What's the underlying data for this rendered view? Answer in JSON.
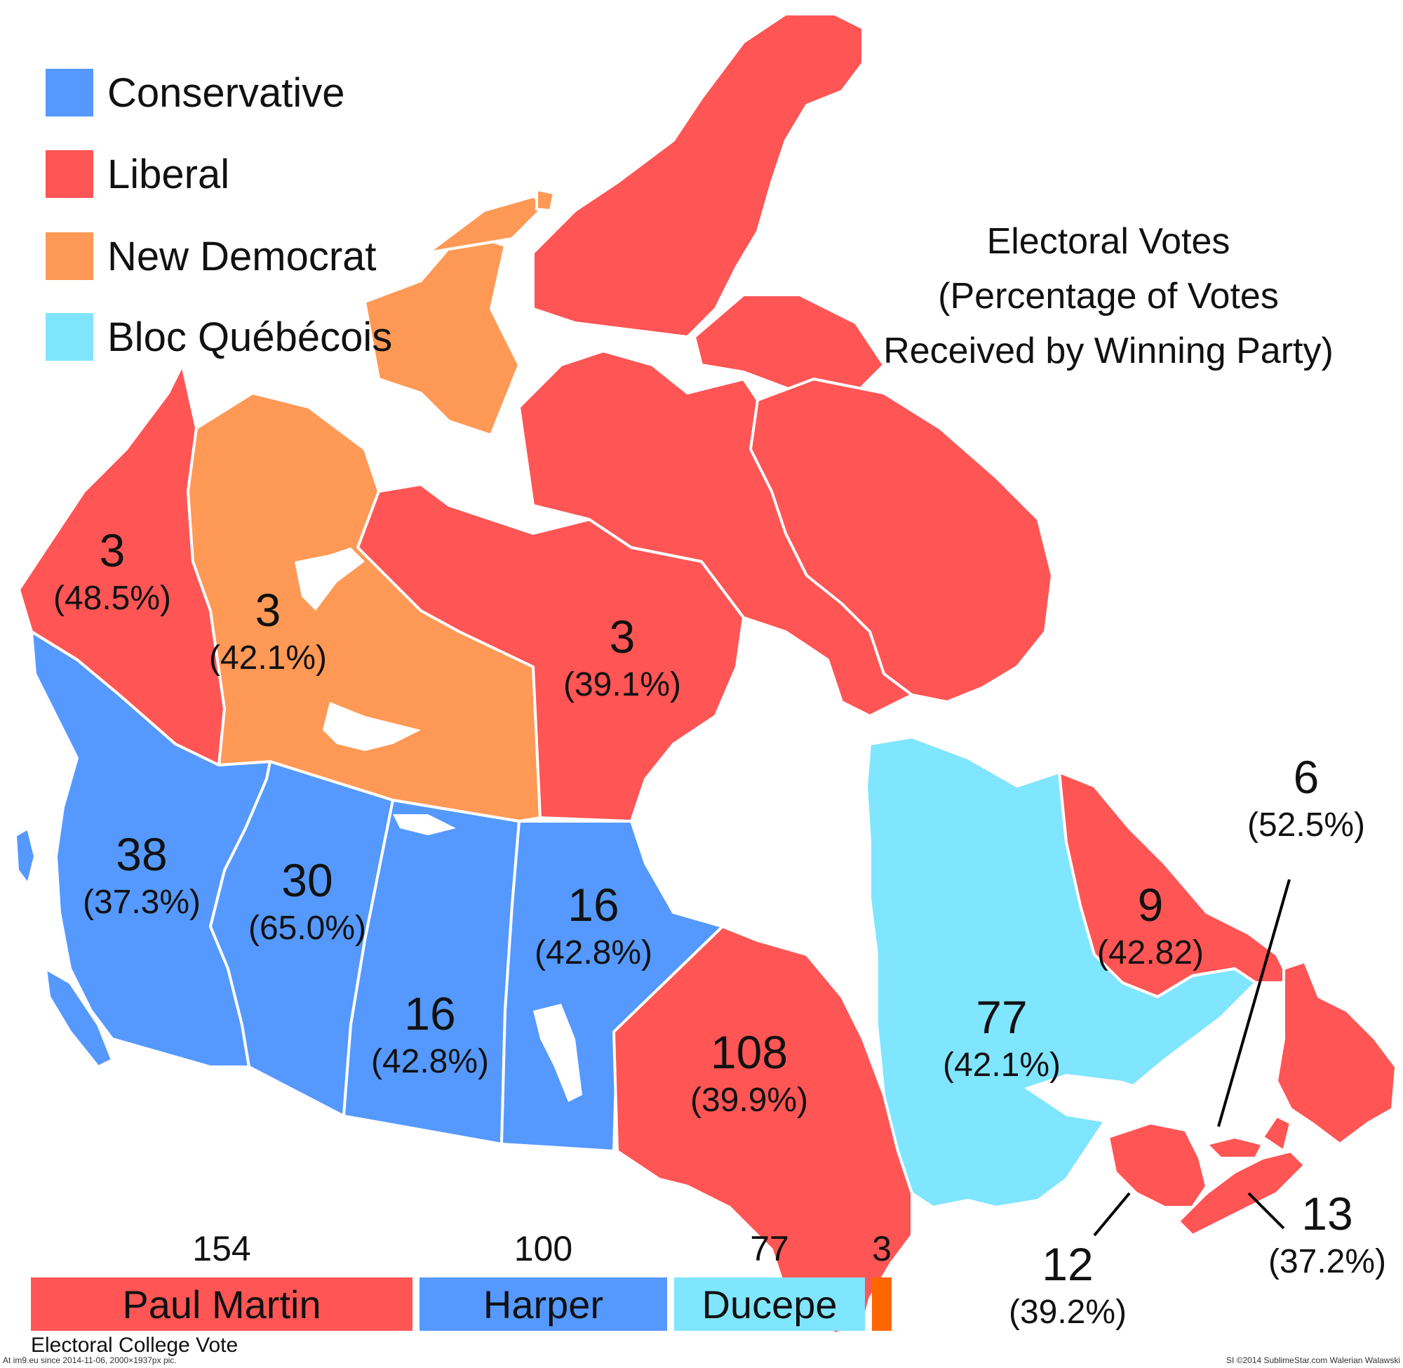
{
  "colors": {
    "conservative": "#5599ff",
    "liberal": "#ff5555",
    "new_democrat": "#ff9955",
    "bloc_quebecois": "#80e5ff",
    "other": "#ff6600",
    "water": "#ffffff",
    "border": "#ffffff"
  },
  "legend": [
    {
      "party": "conservative",
      "label": "Conservative"
    },
    {
      "party": "liberal",
      "label": "Liberal"
    },
    {
      "party": "new_democrat",
      "label": "New Democrat"
    },
    {
      "party": "bloc_quebecois",
      "label": "Bloc Québécois"
    }
  ],
  "title": {
    "line1": "Electoral Votes",
    "line2": "(Percentage of Votes",
    "line3": "Received by Winning Party)"
  },
  "provinces": {
    "yukon": {
      "party": "liberal",
      "seats": "3",
      "pct": "(48.5%)"
    },
    "northwest_territories": {
      "party": "new_democrat",
      "seats": "3",
      "pct": "(42.1%)"
    },
    "nunavut": {
      "party": "liberal",
      "seats": "3",
      "pct": "(39.1%)"
    },
    "british_columbia": {
      "party": "conservative",
      "seats": "38",
      "pct": "(37.3%)"
    },
    "alberta": {
      "party": "conservative",
      "seats": "30",
      "pct": "(65.0%)"
    },
    "saskatchewan": {
      "party": "conservative",
      "seats": "16",
      "pct": "(42.8%)"
    },
    "manitoba": {
      "party": "conservative",
      "seats": "16",
      "pct": "(42.8%)"
    },
    "ontario": {
      "party": "liberal",
      "seats": "108",
      "pct": "(39.9%)"
    },
    "quebec": {
      "party": "bloc_quebecois",
      "seats": "77",
      "pct": "(42.1%)"
    },
    "newfoundland_labrador": {
      "party": "liberal",
      "seats": "9",
      "pct": "(42.82)"
    },
    "prince_edward_island": {
      "party": "liberal",
      "seats": "6",
      "pct": "(52.5%)"
    },
    "new_brunswick": {
      "party": "liberal",
      "seats": "12",
      "pct": "(39.2%)"
    },
    "nova_scotia": {
      "party": "liberal",
      "seats": "13",
      "pct": "(37.2%)"
    }
  },
  "electoral_college": {
    "label": "Electoral College Vote",
    "candidates": [
      {
        "name": "Paul Martin",
        "party": "liberal",
        "votes": 154,
        "votes_label": "154"
      },
      {
        "name": "Harper",
        "party": "conservative",
        "votes": 100,
        "votes_label": "100"
      },
      {
        "name": "Ducepe",
        "party": "bloc_quebecois",
        "votes": 77,
        "votes_label": "77"
      },
      {
        "name": "",
        "party": "other",
        "votes": 3,
        "votes_label": "3"
      }
    ]
  },
  "credits": {
    "left": "At im9.eu since 2014-11-06, 2000×1937px pic.",
    "right": "SI ©2014 SublimeStar.com Walerian Walawski"
  }
}
